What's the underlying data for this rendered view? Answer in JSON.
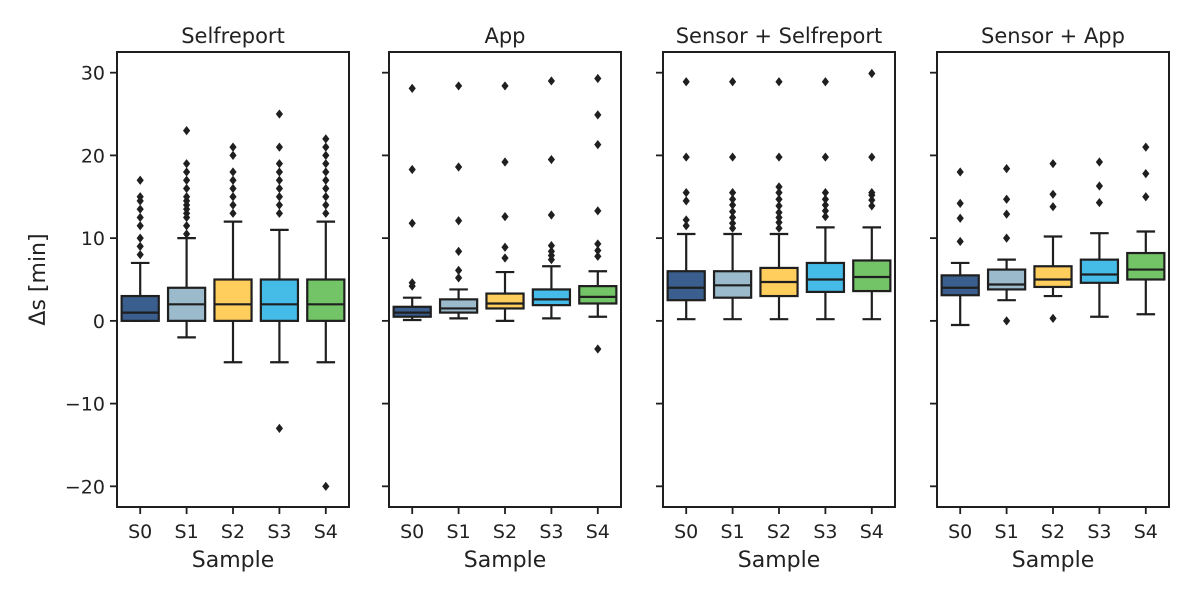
{
  "chart_data": {
    "type": "boxplot",
    "ylabel": "Δs [min]",
    "xlabel": "Sample",
    "ylim": [
      -22.5,
      32.5
    ],
    "yticks": [
      -20,
      -10,
      0,
      10,
      20,
      30
    ],
    "yticklabels": [
      "−20",
      "−10",
      "0",
      "10",
      "20",
      "30"
    ],
    "categories": [
      "S0",
      "S1",
      "S2",
      "S3",
      "S4"
    ],
    "colors": [
      "#3A5F8F",
      "#9BBACB",
      "#FFCE5C",
      "#45BCE8",
      "#73C466"
    ],
    "panels": [
      {
        "title": "Selfreport",
        "boxes": [
          {
            "whislo": 0,
            "q1": 0,
            "med": 1,
            "q3": 3,
            "whishi": 7,
            "fliers": [
              8,
              9,
              10,
              11.5,
              12.5,
              13.5,
              14.5,
              15,
              17
            ]
          },
          {
            "whislo": -2,
            "q1": 0,
            "med": 2,
            "q3": 4,
            "whishi": 10,
            "fliers": [
              10.5,
              11.5,
              12.5,
              13,
              13.5,
              14,
              14.5,
              15,
              16,
              17,
              18,
              19,
              23
            ]
          },
          {
            "whislo": -5,
            "q1": 0,
            "med": 2,
            "q3": 5,
            "whishi": 12,
            "fliers": [
              13,
              14,
              15,
              16,
              17,
              18,
              20,
              21
            ]
          },
          {
            "whislo": -5,
            "q1": 0,
            "med": 2,
            "q3": 5,
            "whishi": 11,
            "fliers": [
              -13,
              13,
              14,
              15,
              16,
              17,
              18,
              19,
              21,
              25
            ]
          },
          {
            "whislo": -5,
            "q1": 0,
            "med": 2,
            "q3": 5,
            "whishi": 12,
            "fliers": [
              -20,
              13,
              14,
              15,
              16,
              17,
              18,
              19,
              20,
              21,
              22
            ]
          }
        ]
      },
      {
        "title": "App",
        "boxes": [
          {
            "whislo": 0.1,
            "q1": 0.5,
            "med": 1,
            "q3": 1.7,
            "whishi": 2.8,
            "fliers": [
              4.2,
              4.6,
              11.8,
              18.3,
              28.1
            ]
          },
          {
            "whislo": 0.3,
            "q1": 1,
            "med": 1.5,
            "q3": 2.6,
            "whishi": 3.8,
            "fliers": [
              5.2,
              6.1,
              8.4,
              12.1,
              18.6,
              28.4
            ]
          },
          {
            "whislo": 0,
            "q1": 1.5,
            "med": 2.1,
            "q3": 3.3,
            "whishi": 5.9,
            "fliers": [
              7.6,
              8.9,
              12.6,
              19.2,
              28.4
            ]
          },
          {
            "whislo": 0.3,
            "q1": 1.9,
            "med": 2.6,
            "q3": 3.8,
            "whishi": 6.6,
            "fliers": [
              7.4,
              7.9,
              8.4,
              9.1,
              12.8,
              19.5,
              29
            ]
          },
          {
            "whislo": 0.5,
            "q1": 2.1,
            "med": 2.9,
            "q3": 4.2,
            "whishi": 6,
            "fliers": [
              -3.4,
              7.8,
              8.5,
              9.3,
              13.3,
              21.3,
              24.9,
              29.3
            ]
          }
        ]
      },
      {
        "title": "Sensor + Selfreport",
        "boxes": [
          {
            "whislo": 0.2,
            "q1": 2.5,
            "med": 4,
            "q3": 6,
            "whishi": 10.5,
            "fliers": [
              11.5,
              12.2,
              14.5,
              15.5,
              19.8,
              28.9
            ]
          },
          {
            "whislo": 0.2,
            "q1": 2.8,
            "med": 4.3,
            "q3": 6,
            "whishi": 10.5,
            "fliers": [
              11.2,
              11.8,
              12.5,
              13.2,
              14,
              14.7,
              15.5,
              19.8,
              28.9
            ]
          },
          {
            "whislo": 0.2,
            "q1": 3,
            "med": 4.7,
            "q3": 6.4,
            "whishi": 10.5,
            "fliers": [
              11.2,
              11.9,
              12.5,
              13.1,
              13.9,
              14.7,
              15.5,
              16.2,
              19.8,
              28.9
            ]
          },
          {
            "whislo": 0.2,
            "q1": 3.5,
            "med": 5,
            "q3": 7,
            "whishi": 11.3,
            "fliers": [
              12.6,
              13.3,
              14,
              14.7,
              15.5,
              19.8,
              28.9
            ]
          },
          {
            "whislo": 0.2,
            "q1": 3.6,
            "med": 5.3,
            "q3": 7.3,
            "whishi": 11.3,
            "fliers": [
              13.9,
              14.6,
              15.2,
              15.5,
              19.8,
              29.9
            ]
          }
        ]
      },
      {
        "title": "Sensor + App",
        "boxes": [
          {
            "whislo": -0.5,
            "q1": 3.1,
            "med": 4,
            "q3": 5.5,
            "whishi": 7,
            "fliers": [
              9.6,
              12.4,
              14.2,
              18
            ]
          },
          {
            "whislo": 2.5,
            "q1": 3.8,
            "med": 4.4,
            "q3": 6.2,
            "whishi": 7.4,
            "fliers": [
              0,
              10,
              12.9,
              14.7,
              18.4
            ]
          },
          {
            "whislo": 3,
            "q1": 4.1,
            "med": 5,
            "q3": 6.6,
            "whishi": 10.2,
            "fliers": [
              0.3,
              13.8,
              15.3,
              19
            ]
          },
          {
            "whislo": 0.5,
            "q1": 4.6,
            "med": 5.6,
            "q3": 7.4,
            "whishi": 10.6,
            "fliers": [
              14.3,
              16.3,
              19.2
            ]
          },
          {
            "whislo": 0.8,
            "q1": 5,
            "med": 6.2,
            "q3": 8.2,
            "whishi": 10.8,
            "fliers": [
              15,
              17.8,
              21
            ]
          }
        ]
      }
    ]
  }
}
